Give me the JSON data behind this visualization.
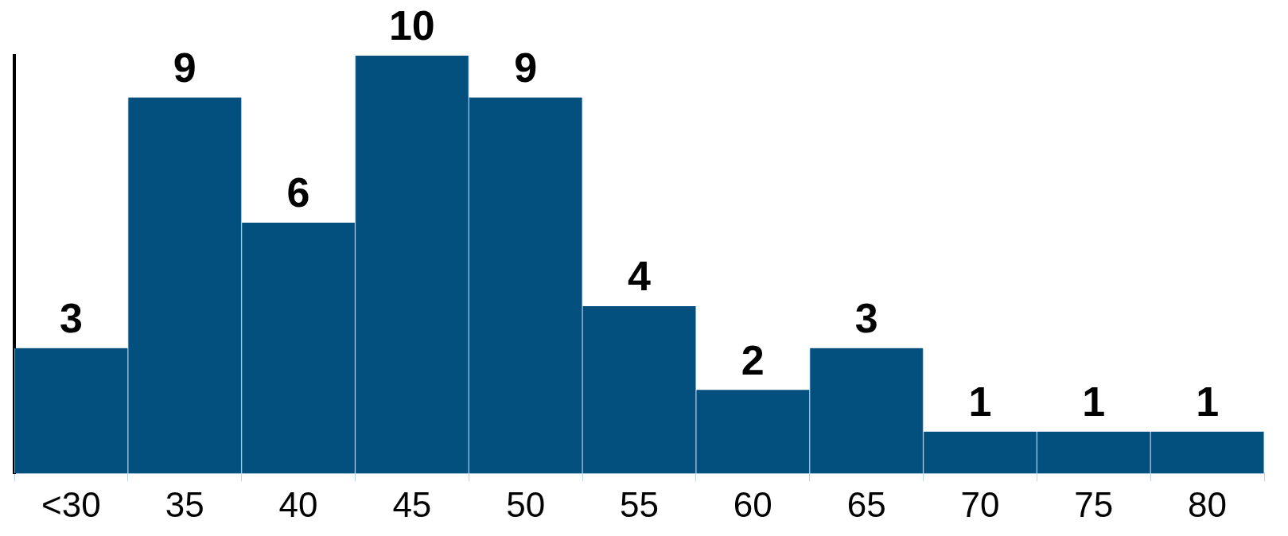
{
  "chart_data": {
    "type": "bar",
    "categories": [
      "<30",
      "35",
      "40",
      "45",
      "50",
      "55",
      "60",
      "65",
      "70",
      "75",
      "80"
    ],
    "values": [
      3,
      9,
      6,
      10,
      9,
      4,
      2,
      3,
      1,
      1,
      1
    ],
    "color": "#034f7d",
    "data_labels": true
  }
}
